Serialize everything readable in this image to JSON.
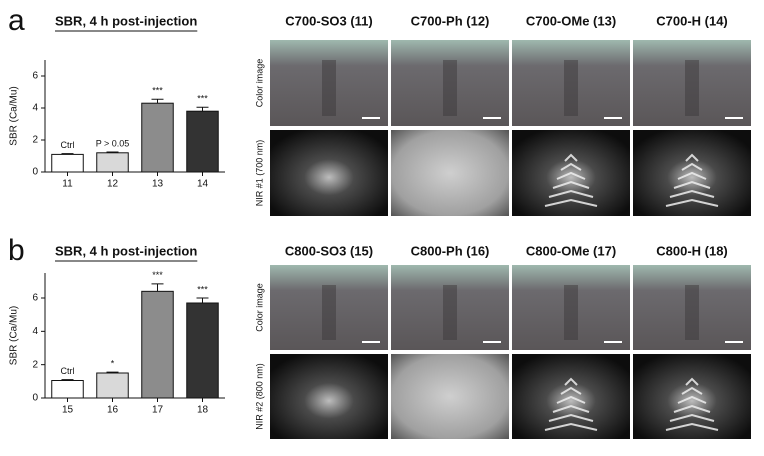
{
  "chart_data": [
    {
      "type": "bar",
      "title": "SBR, 4 h post-injection",
      "y_label": "SBR (Ca/Mu)",
      "categories": [
        "11",
        "12",
        "13",
        "14"
      ],
      "values": [
        1.1,
        1.2,
        4.3,
        3.8
      ],
      "errors": [
        0.05,
        0.05,
        0.25,
        0.25
      ],
      "annotations": [
        "Ctrl",
        "P > 0.05",
        "***",
        "***"
      ],
      "colors": [
        "#ffffff",
        "#d9d9d9",
        "#8c8c8c",
        "#333333"
      ],
      "ylim": [
        0,
        7
      ],
      "yticks": [
        0,
        2,
        4,
        6
      ]
    },
    {
      "type": "bar",
      "title": "SBR, 4 h post-injection",
      "y_label": "SBR (Ca/Mu)",
      "categories": [
        "15",
        "16",
        "17",
        "18"
      ],
      "values": [
        1.05,
        1.5,
        6.4,
        5.7
      ],
      "errors": [
        0.05,
        0.05,
        0.45,
        0.3
      ],
      "annotations": [
        "Ctrl",
        "*",
        "***",
        "***"
      ],
      "colors": [
        "#ffffff",
        "#d9d9d9",
        "#8c8c8c",
        "#333333"
      ],
      "ylim": [
        0,
        7.5
      ],
      "yticks": [
        0,
        2,
        4,
        6
      ]
    }
  ],
  "figure": {
    "panel_letters": [
      "a",
      "b"
    ],
    "image_groups": [
      {
        "titles": [
          "C700-SO3 (11)",
          "C700-Ph (12)",
          "C700-OMe (13)",
          "C700-H (14)"
        ],
        "row_labels": [
          "Color image",
          "NIR #1 (700 nm)"
        ]
      },
      {
        "titles": [
          "C800-SO3 (15)",
          "C800-Ph (16)",
          "C800-OMe (17)",
          "C800-H (18)"
        ],
        "row_labels": [
          "Color image",
          "NIR #2 (800 nm)"
        ]
      }
    ]
  }
}
